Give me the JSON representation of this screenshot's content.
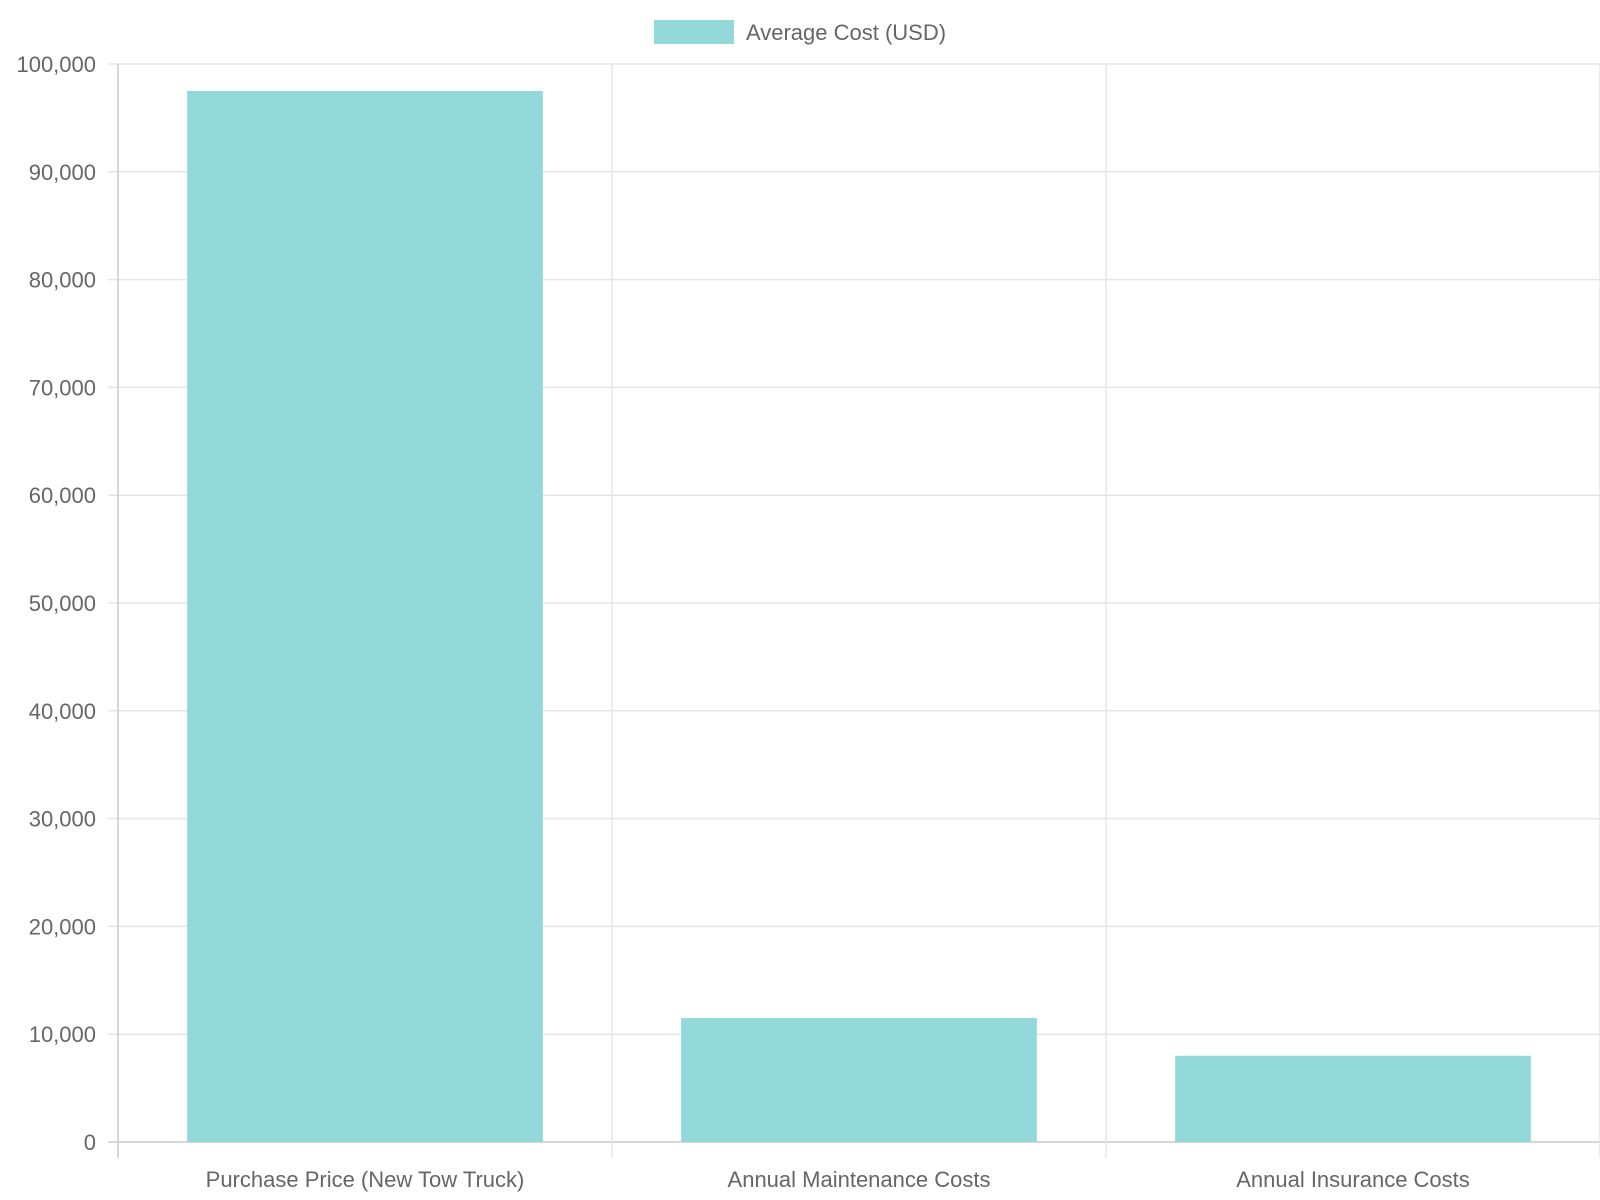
{
  "chart_data": {
    "type": "bar",
    "categories": [
      "Purchase Price (New Tow Truck)",
      "Annual Maintenance Costs",
      "Annual Insurance Costs"
    ],
    "series": [
      {
        "name": "Average Cost (USD)",
        "values": [
          97500,
          11500,
          8000
        ],
        "color": "#93d9d9"
      }
    ],
    "title": "",
    "xlabel": "",
    "ylabel": "",
    "ylim": [
      0,
      100000
    ],
    "yticks": [
      0,
      10000,
      20000,
      30000,
      40000,
      50000,
      60000,
      70000,
      80000,
      90000,
      100000
    ],
    "ytick_labels": [
      "0",
      "10,000",
      "20,000",
      "30,000",
      "40,000",
      "50,000",
      "60,000",
      "70,000",
      "80,000",
      "90,000",
      "100,000"
    ],
    "grid": true,
    "legend_position": "top-center",
    "colors": {
      "grid": "#e5e5e5",
      "axis": "#cccccc",
      "text": "#666666"
    }
  }
}
